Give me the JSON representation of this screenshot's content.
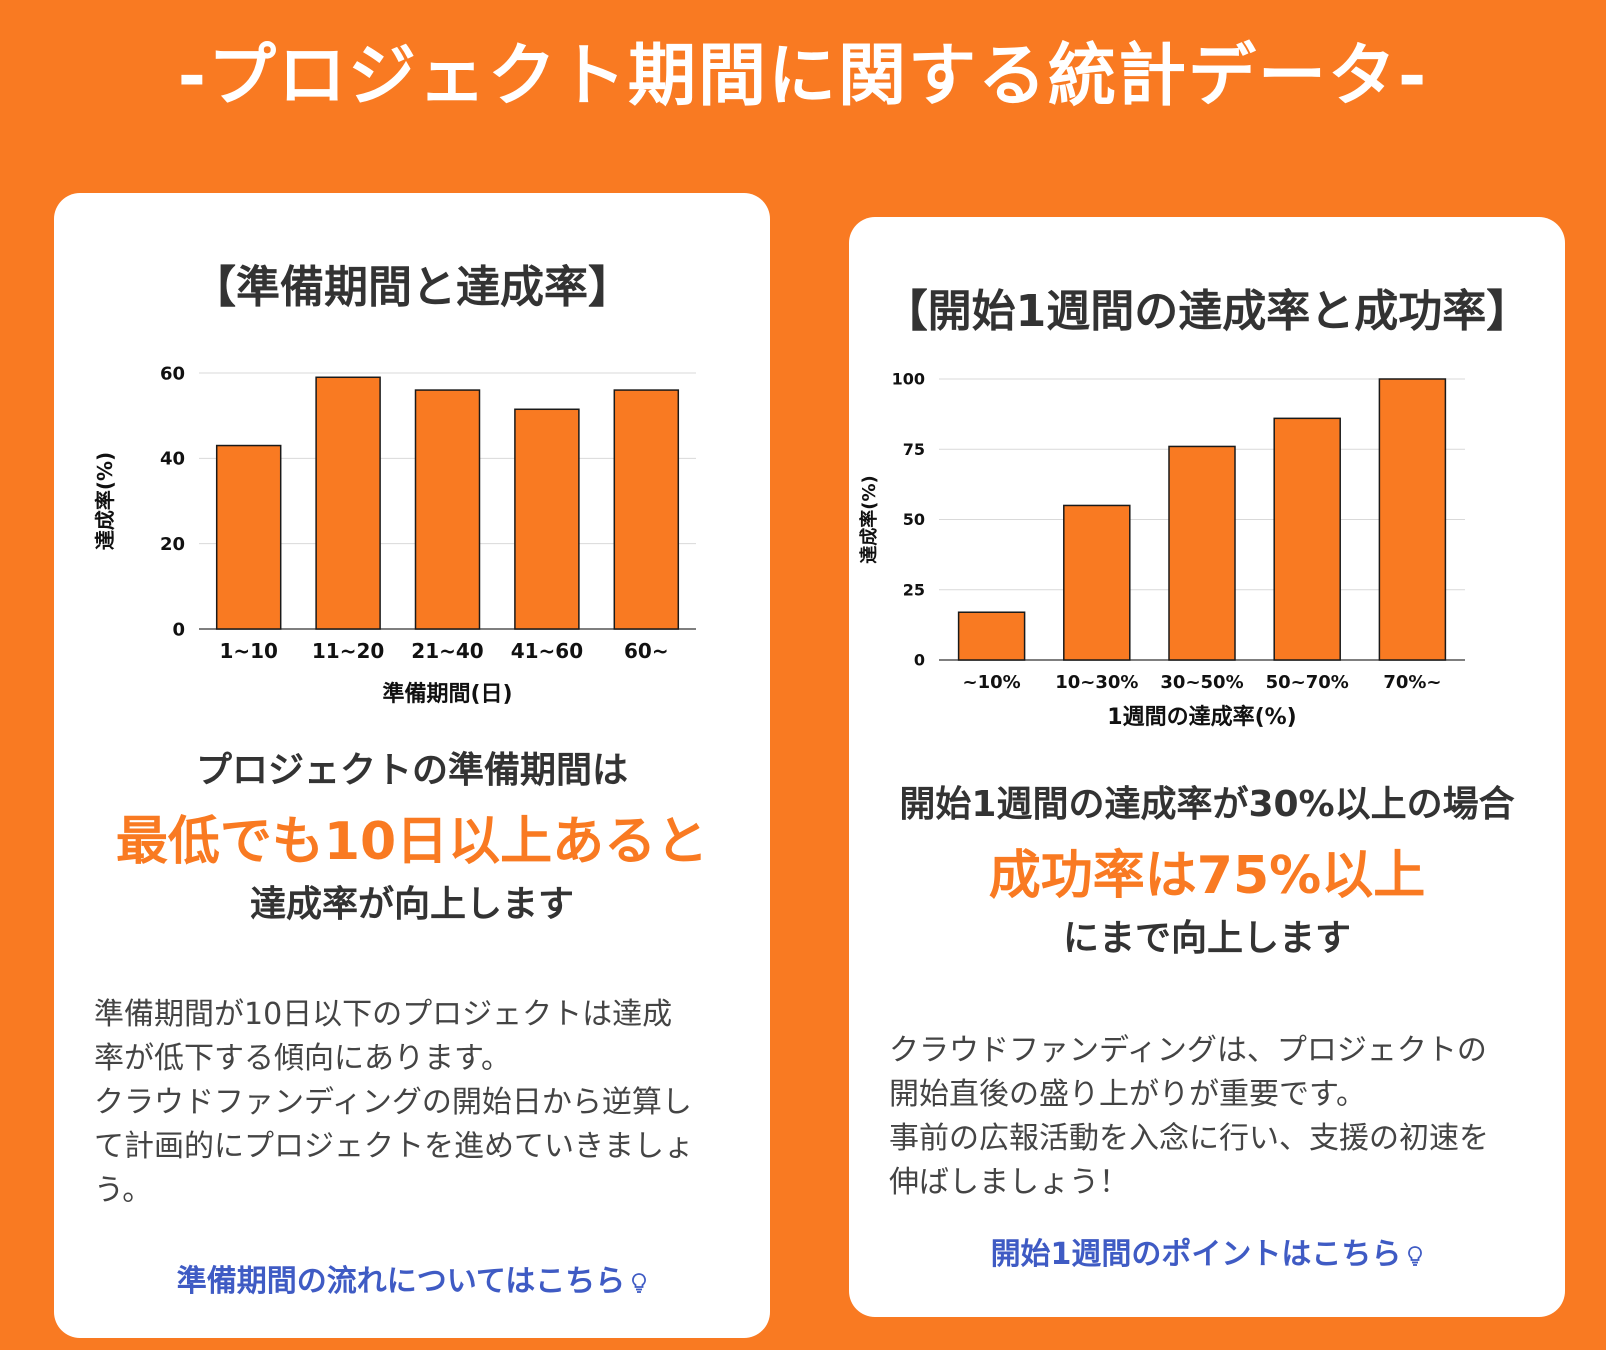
{
  "header": {
    "title": "-プロジェクト期間に関する統計データ-"
  },
  "colors": {
    "background": "#F97A22",
    "bar": "#F97A22",
    "link": "#3F5BC4",
    "text": "#333333"
  },
  "left_card": {
    "title": "【準備期間と達成率】",
    "lead": "プロジェクトの準備期間は",
    "highlight": "最低でも10日以上あると",
    "trail": "達成率が向上します",
    "body": "準備期間が10日以下のプロジェクトは達成\n率が低下する傾向にあります。\nクラウドファンディングの開始日から逆算し\nて計画的にプロジェクトを進めていきましょ\nう。",
    "link": "準備期間の流れについてはこちら",
    "link_icon": "lightbulb-icon"
  },
  "right_card": {
    "title": "【開始1週間の達成率と成功率】",
    "lead": "開始1週間の達成率が30%以上の場合",
    "highlight": "成功率は75%以上",
    "trail": "にまで向上します",
    "body": "クラウドファンディングは、プロジェクトの\n開始直後の盛り上がりが重要です。\n事前の広報活動を入念に行い、支援の初速を\n伸ばしましょう！",
    "link": "開始1週間のポイントはこちら",
    "link_icon": "lightbulb-icon"
  },
  "chart_data": [
    {
      "type": "bar",
      "categories": [
        "1~10",
        "11~20",
        "21~40",
        "41~60",
        "60~"
      ],
      "values": [
        43,
        59,
        56,
        51.5,
        56
      ],
      "xlabel": "準備期間(日)",
      "ylabel": "達成率(%)",
      "ylim": [
        0,
        60
      ],
      "yticks": [
        0,
        20,
        40,
        60
      ],
      "grid": true,
      "legend": "none"
    },
    {
      "type": "bar",
      "categories": [
        "~10%",
        "10~30%",
        "30~50%",
        "50~70%",
        "70%~"
      ],
      "values": [
        17,
        55,
        76,
        86,
        100
      ],
      "xlabel": "1週間の達成率(%)",
      "ylabel": "達成率(%)",
      "ylim": [
        0,
        100
      ],
      "yticks": [
        0,
        25,
        50,
        75,
        100
      ],
      "grid": true,
      "legend": "none"
    }
  ]
}
